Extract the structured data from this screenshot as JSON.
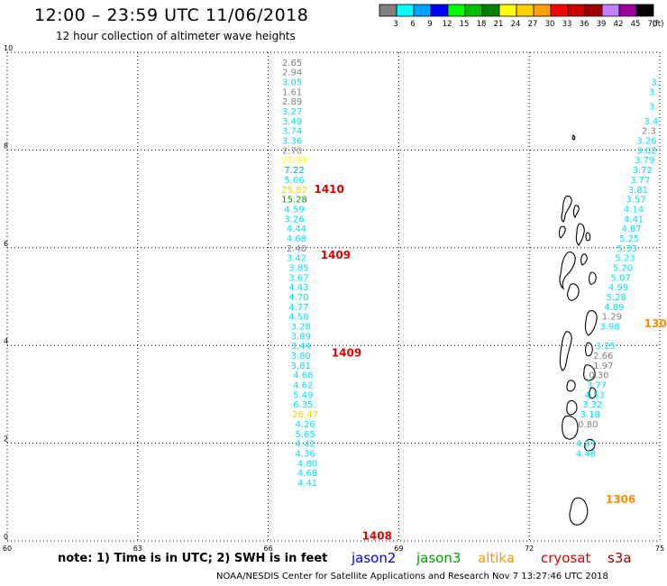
{
  "header": {
    "title": "12:00 – 23:59 UTC 11/06/2018",
    "subtitle": "12 hour collection of altimeter wave heights"
  },
  "legend": {
    "unit_label": "(ft)",
    "bins": [
      {
        "label": "3",
        "color": "#808080"
      },
      {
        "label": "6",
        "color": "#00ffff"
      },
      {
        "label": "9",
        "color": "#00a0ff"
      },
      {
        "label": "12",
        "color": "#0000ff"
      },
      {
        "label": "15",
        "color": "#00ff00"
      },
      {
        "label": "18",
        "color": "#00c000"
      },
      {
        "label": "21",
        "color": "#008000"
      },
      {
        "label": "24",
        "color": "#ffff00"
      },
      {
        "label": "27",
        "color": "#ffd000"
      },
      {
        "label": "30",
        "color": "#ffa000"
      },
      {
        "label": "33",
        "color": "#ff0000"
      },
      {
        "label": "36",
        "color": "#d00000"
      },
      {
        "label": "39",
        "color": "#a00000"
      },
      {
        "label": "42",
        "color": "#c080ff"
      },
      {
        "label": "45",
        "color": "#a000a0"
      },
      {
        "label": "70",
        "color": "#000000"
      }
    ]
  },
  "axes": {
    "lon_range": [
      60,
      75
    ],
    "lat_range": [
      0,
      10
    ],
    "lon_ticks": [
      "60",
      "63",
      "66",
      "69",
      "72",
      "75"
    ],
    "lat_ticks": [
      "0",
      "2",
      "4",
      "6",
      "8",
      "10"
    ]
  },
  "tracks": [
    {
      "points": [
        {
          "lon": 66.55,
          "lat": 9.8,
          "value": "2.65",
          "color": "#808080"
        },
        {
          "lon": 66.55,
          "lat": 9.6,
          "value": "2.94",
          "color": "#808080"
        },
        {
          "lon": 66.55,
          "lat": 9.4,
          "value": "3.05",
          "color": "#00e0ff"
        },
        {
          "lon": 66.55,
          "lat": 9.2,
          "value": "1.61",
          "color": "#808080"
        },
        {
          "lon": 66.55,
          "lat": 9.0,
          "value": "2.89",
          "color": "#808080"
        },
        {
          "lon": 66.55,
          "lat": 8.8,
          "value": "3.27",
          "color": "#00e0ff"
        },
        {
          "lon": 66.55,
          "lat": 8.6,
          "value": "3.49",
          "color": "#00e0ff"
        },
        {
          "lon": 66.55,
          "lat": 8.4,
          "value": "3.74",
          "color": "#00e0ff"
        },
        {
          "lon": 66.55,
          "lat": 8.2,
          "value": "3.36",
          "color": "#00e0ff"
        },
        {
          "lon": 66.55,
          "lat": 8.0,
          "value": "2.70",
          "color": "#808080"
        },
        {
          "lon": 66.6,
          "lat": 7.8,
          "value": "22.94",
          "color": "#ffff00"
        },
        {
          "lon": 66.6,
          "lat": 7.6,
          "value": "7.22",
          "color": "#00a0ff"
        },
        {
          "lon": 66.6,
          "lat": 7.4,
          "value": "5.06",
          "color": "#00e0ff"
        },
        {
          "lon": 66.6,
          "lat": 7.2,
          "value": "25.82",
          "color": "#ffd000"
        },
        {
          "lon": 66.6,
          "lat": 7.0,
          "value": "15.28",
          "color": "#00a000"
        },
        {
          "lon": 66.6,
          "lat": 6.8,
          "value": "4.59",
          "color": "#00e0ff"
        },
        {
          "lon": 66.6,
          "lat": 6.6,
          "value": "3.26",
          "color": "#00e0ff"
        },
        {
          "lon": 66.65,
          "lat": 6.4,
          "value": "4.44",
          "color": "#00e0ff"
        },
        {
          "lon": 66.65,
          "lat": 6.2,
          "value": "4.68",
          "color": "#00e0ff"
        },
        {
          "lon": 66.65,
          "lat": 6.0,
          "value": "2.40",
          "color": "#808080"
        },
        {
          "lon": 66.65,
          "lat": 5.8,
          "value": "3.42",
          "color": "#00e0ff"
        },
        {
          "lon": 66.7,
          "lat": 5.6,
          "value": "3.85",
          "color": "#00e0ff"
        },
        {
          "lon": 66.7,
          "lat": 5.4,
          "value": "3.67",
          "color": "#00e0ff"
        },
        {
          "lon": 66.7,
          "lat": 5.2,
          "value": "4.43",
          "color": "#00e0ff"
        },
        {
          "lon": 66.7,
          "lat": 5.0,
          "value": "4.70",
          "color": "#00e0ff"
        },
        {
          "lon": 66.7,
          "lat": 4.8,
          "value": "4.77",
          "color": "#00e0ff"
        },
        {
          "lon": 66.7,
          "lat": 4.6,
          "value": "4.58",
          "color": "#00e0ff"
        },
        {
          "lon": 66.75,
          "lat": 4.4,
          "value": "3.28",
          "color": "#00e0ff"
        },
        {
          "lon": 66.75,
          "lat": 4.2,
          "value": "3.89",
          "color": "#00e0ff"
        },
        {
          "lon": 66.75,
          "lat": 4.0,
          "value": "3.44",
          "color": "#00e0ff"
        },
        {
          "lon": 66.75,
          "lat": 3.8,
          "value": "3.80",
          "color": "#00e0ff"
        },
        {
          "lon": 66.75,
          "lat": 3.6,
          "value": "3.81",
          "color": "#00e0ff"
        },
        {
          "lon": 66.8,
          "lat": 3.4,
          "value": "4.68",
          "color": "#00e0ff"
        },
        {
          "lon": 66.8,
          "lat": 3.2,
          "value": "4.62",
          "color": "#00e0ff"
        },
        {
          "lon": 66.8,
          "lat": 3.0,
          "value": "5.49",
          "color": "#00e0ff"
        },
        {
          "lon": 66.8,
          "lat": 2.8,
          "value": "6.35",
          "color": "#00e0ff"
        },
        {
          "lon": 66.85,
          "lat": 2.6,
          "value": "26.47",
          "color": "#ffd000"
        },
        {
          "lon": 66.85,
          "lat": 2.4,
          "value": "4.26",
          "color": "#00e0ff"
        },
        {
          "lon": 66.85,
          "lat": 2.2,
          "value": "5.65",
          "color": "#00e0ff"
        },
        {
          "lon": 66.85,
          "lat": 2.0,
          "value": "4.42",
          "color": "#00e0ff"
        },
        {
          "lon": 66.85,
          "lat": 1.8,
          "value": "4.36",
          "color": "#00e0ff"
        },
        {
          "lon": 66.9,
          "lat": 1.6,
          "value": "4.80",
          "color": "#00e0ff"
        },
        {
          "lon": 66.9,
          "lat": 1.4,
          "value": "4.68",
          "color": "#00e0ff"
        },
        {
          "lon": 66.9,
          "lat": 1.2,
          "value": "4.41",
          "color": "#00e0ff"
        }
      ]
    },
    {
      "points": [
        {
          "lon": 74.9,
          "lat": 9.4,
          "value": "3.",
          "color": "#00e0ff"
        },
        {
          "lon": 74.85,
          "lat": 9.2,
          "value": "3.",
          "color": "#00e0ff"
        },
        {
          "lon": 74.85,
          "lat": 8.9,
          "value": "3.",
          "color": "#00e0ff"
        },
        {
          "lon": 74.8,
          "lat": 8.6,
          "value": "3.4",
          "color": "#00e0ff"
        },
        {
          "lon": 74.75,
          "lat": 8.4,
          "value": "2.3",
          "color": "#808080"
        },
        {
          "lon": 74.7,
          "lat": 8.2,
          "value": "3.26",
          "color": "#00e0ff"
        },
        {
          "lon": 74.7,
          "lat": 8.0,
          "value": "3.02",
          "color": "#00e0ff"
        },
        {
          "lon": 74.65,
          "lat": 7.8,
          "value": "3.79",
          "color": "#00e0ff"
        },
        {
          "lon": 74.6,
          "lat": 7.6,
          "value": "3.72",
          "color": "#00e0ff"
        },
        {
          "lon": 74.55,
          "lat": 7.4,
          "value": "3.77",
          "color": "#00e0ff"
        },
        {
          "lon": 74.5,
          "lat": 7.2,
          "value": "3.81",
          "color": "#00e0ff"
        },
        {
          "lon": 74.45,
          "lat": 7.0,
          "value": "3.57",
          "color": "#00e0ff"
        },
        {
          "lon": 74.4,
          "lat": 6.8,
          "value": "4.14",
          "color": "#00e0ff"
        },
        {
          "lon": 74.4,
          "lat": 6.6,
          "value": "4.41",
          "color": "#00e0ff"
        },
        {
          "lon": 74.35,
          "lat": 6.4,
          "value": "4.87",
          "color": "#00e0ff"
        },
        {
          "lon": 74.3,
          "lat": 6.2,
          "value": "5.25",
          "color": "#00e0ff"
        },
        {
          "lon": 74.25,
          "lat": 6.0,
          "value": "5.33",
          "color": "#00e0ff"
        },
        {
          "lon": 74.2,
          "lat": 5.8,
          "value": "5.23",
          "color": "#00e0ff"
        },
        {
          "lon": 74.15,
          "lat": 5.6,
          "value": "5.20",
          "color": "#00e0ff"
        },
        {
          "lon": 74.1,
          "lat": 5.4,
          "value": "5.07",
          "color": "#00e0ff"
        },
        {
          "lon": 74.05,
          "lat": 5.2,
          "value": "4.99",
          "color": "#00e0ff"
        },
        {
          "lon": 74.0,
          "lat": 5.0,
          "value": "5.28",
          "color": "#00e0ff"
        },
        {
          "lon": 73.95,
          "lat": 4.8,
          "value": "4.89",
          "color": "#00e0ff"
        },
        {
          "lon": 73.9,
          "lat": 4.6,
          "value": "1.29",
          "color": "#808080"
        },
        {
          "lon": 73.85,
          "lat": 4.4,
          "value": "3.98",
          "color": "#00e0ff"
        },
        {
          "lon": 73.75,
          "lat": 4.0,
          "value": "3.25",
          "color": "#00e0ff"
        },
        {
          "lon": 73.7,
          "lat": 3.8,
          "value": "2.66",
          "color": "#808080"
        },
        {
          "lon": 73.7,
          "lat": 3.6,
          "value": "1.97",
          "color": "#808080"
        },
        {
          "lon": 73.6,
          "lat": 3.4,
          "value": "0.30",
          "color": "#808080"
        },
        {
          "lon": 73.55,
          "lat": 3.2,
          "value": "3.77",
          "color": "#00e0ff"
        },
        {
          "lon": 73.5,
          "lat": 3.0,
          "value": "4.53",
          "color": "#00e0ff"
        },
        {
          "lon": 73.45,
          "lat": 2.8,
          "value": "3.32",
          "color": "#00e0ff"
        },
        {
          "lon": 73.4,
          "lat": 2.6,
          "value": "3.18",
          "color": "#00e0ff"
        },
        {
          "lon": 73.35,
          "lat": 2.4,
          "value": "0.80",
          "color": "#808080"
        },
        {
          "lon": 73.3,
          "lat": 2.0,
          "value": "4.97",
          "color": "#00e0ff"
        },
        {
          "lon": 73.3,
          "lat": 1.8,
          "value": "4.48",
          "color": "#00e0ff"
        }
      ]
    }
  ],
  "time_labels": [
    {
      "lon": 67.4,
      "lat": 7.2,
      "text": "1410",
      "color": "#e00000"
    },
    {
      "lon": 67.55,
      "lat": 5.85,
      "text": "1409",
      "color": "#e00000"
    },
    {
      "lon": 67.8,
      "lat": 3.85,
      "text": "1409",
      "color": "#e00000"
    },
    {
      "lon": 68.5,
      "lat": 0.1,
      "text": "1408",
      "color": "#e00000"
    },
    {
      "lon": 74.9,
      "lat": 4.45,
      "text": "130",
      "color": "#ff8c00"
    },
    {
      "lon": 74.1,
      "lat": 0.85,
      "text": "1306",
      "color": "#ff8c00"
    }
  ],
  "footer": {
    "note": "note: 1) Time is in UTC; 2) SWH is in feet",
    "satellites": [
      {
        "name": "jason2",
        "color": "#0000e0"
      },
      {
        "name": "jason3",
        "color": "#00a000"
      },
      {
        "name": "altika",
        "color": "#ff9900"
      },
      {
        "name": "cryosat",
        "color": "#e00000"
      },
      {
        "name": "s3a",
        "color": "#990000"
      }
    ],
    "credit": "NOAA/NESDIS Center for Satellite Applications and Research    Nov  7 13:27:46 UTC 2018"
  }
}
